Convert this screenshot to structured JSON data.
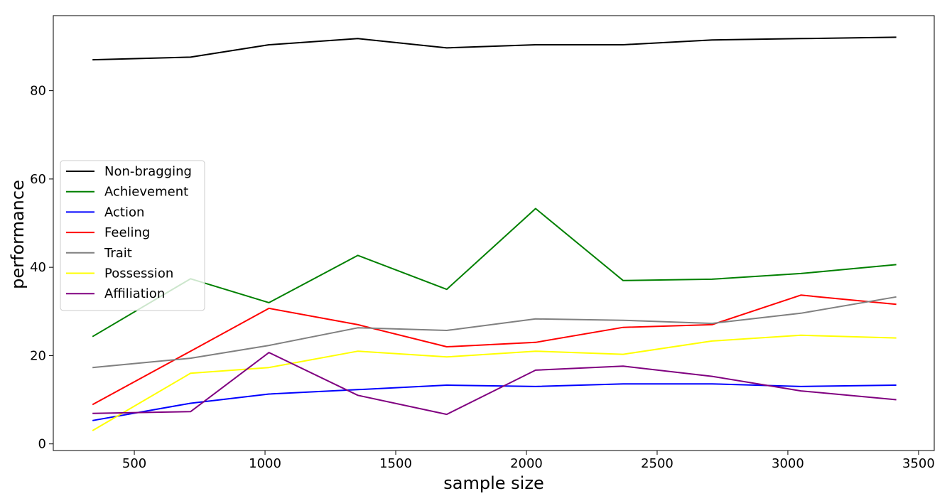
{
  "chart_data": {
    "type": "line",
    "title": "",
    "xlabel": "sample size",
    "ylabel": "performance",
    "xlim": [
      190,
      3560
    ],
    "ylim": [
      -1.5,
      97
    ],
    "xticks": [
      500,
      1000,
      1500,
      2000,
      2500,
      3000,
      3500
    ],
    "yticks": [
      0,
      20,
      40,
      60,
      80
    ],
    "grid": false,
    "legend_position": "center-left",
    "x": [
      340,
      715,
      1015,
      1355,
      1695,
      2035,
      2370,
      2710,
      3050,
      3415
    ],
    "series": [
      {
        "name": "Non-bragging",
        "color": "#000000",
        "values": [
          87.0,
          87.6,
          90.4,
          91.8,
          89.7,
          90.4,
          90.4,
          91.5,
          91.8,
          92.1
        ]
      },
      {
        "name": "Achievement",
        "color": "#008000",
        "values": [
          24.3,
          37.4,
          32.0,
          42.7,
          35.0,
          53.3,
          37.0,
          37.3,
          38.6,
          40.6
        ]
      },
      {
        "name": "Action",
        "color": "#0000ff",
        "values": [
          5.3,
          9.2,
          11.3,
          12.3,
          13.3,
          13.0,
          13.6,
          13.6,
          13.0,
          13.3
        ]
      },
      {
        "name": "Feeling",
        "color": "#ff0000",
        "values": [
          8.9,
          21.0,
          30.7,
          27.0,
          22.0,
          23.0,
          26.4,
          27.0,
          33.7,
          31.6
        ]
      },
      {
        "name": "Trait",
        "color": "#808080",
        "values": [
          17.3,
          19.4,
          22.3,
          26.3,
          25.7,
          28.3,
          28.0,
          27.3,
          29.6,
          33.3
        ]
      },
      {
        "name": "Possession",
        "color": "#ffff00",
        "values": [
          3.0,
          16.0,
          17.3,
          21.0,
          19.7,
          21.0,
          20.3,
          23.3,
          24.6,
          24.0
        ]
      },
      {
        "name": "Affiliation",
        "color": "#800080",
        "values": [
          6.9,
          7.3,
          20.7,
          11.0,
          6.7,
          16.7,
          17.6,
          15.3,
          12.0,
          10.0
        ]
      }
    ]
  }
}
